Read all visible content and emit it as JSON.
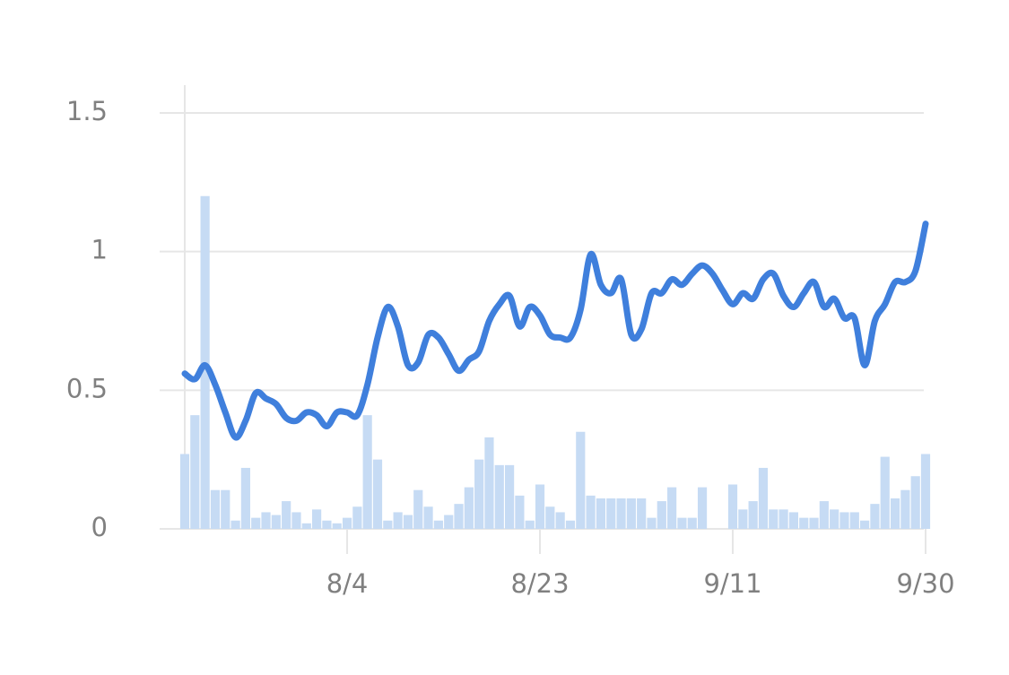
{
  "chart_data": {
    "type": "combo",
    "categories": [
      null,
      null,
      null,
      null,
      null,
      null,
      null,
      null,
      null,
      null,
      null,
      null,
      null,
      null,
      null,
      null,
      "8/4",
      null,
      null,
      null,
      null,
      null,
      null,
      null,
      null,
      null,
      null,
      null,
      null,
      null,
      null,
      null,
      null,
      null,
      null,
      "8/23",
      null,
      null,
      null,
      null,
      null,
      null,
      null,
      null,
      null,
      null,
      null,
      null,
      null,
      null,
      null,
      null,
      null,
      null,
      "9/11",
      null,
      null,
      null,
      null,
      null,
      null,
      null,
      null,
      null,
      null,
      null,
      null,
      null,
      null,
      null,
      null,
      null,
      null,
      "9/30"
    ],
    "series": [
      {
        "type": "bar",
        "color": "#c6dbf4",
        "values": [
          0.27,
          0.41,
          1.2,
          0.14,
          0.14,
          0.03,
          0.22,
          0.04,
          0.06,
          0.05,
          0.1,
          0.06,
          0.02,
          0.07,
          0.03,
          0.02,
          0.04,
          0.08,
          0.41,
          0.25,
          0.03,
          0.06,
          0.05,
          0.14,
          0.08,
          0.03,
          0.05,
          0.09,
          0.15,
          0.25,
          0.33,
          0.23,
          0.23,
          0.12,
          0.03,
          0.16,
          0.08,
          0.06,
          0.03,
          0.35,
          0.12,
          0.11,
          0.11,
          0.11,
          0.11,
          0.11,
          0.04,
          0.1,
          0.15,
          0.04,
          0.04,
          0.15,
          0,
          0,
          0.16,
          0.07,
          0.1,
          0.22,
          0.07,
          0.07,
          0.06,
          0.04,
          0.04,
          0.1,
          0.07,
          0.06,
          0.06,
          0.03,
          0.09,
          0.26,
          0.11,
          0.14,
          0.19,
          0.27
        ]
      },
      {
        "type": "line",
        "color": "#3f7fdc",
        "values": [
          0.56,
          0.54,
          0.59,
          0.52,
          0.42,
          0.33,
          0.39,
          0.49,
          0.47,
          0.45,
          0.4,
          0.39,
          0.42,
          0.41,
          0.37,
          0.42,
          0.42,
          0.41,
          0.52,
          0.69,
          0.8,
          0.73,
          0.59,
          0.6,
          0.7,
          0.69,
          0.63,
          0.57,
          0.61,
          0.64,
          0.75,
          0.81,
          0.84,
          0.73,
          0.8,
          0.77,
          0.7,
          0.69,
          0.69,
          0.79,
          0.99,
          0.88,
          0.85,
          0.9,
          0.7,
          0.72,
          0.85,
          0.85,
          0.9,
          0.88,
          0.92,
          0.95,
          0.92,
          0.86,
          0.81,
          0.85,
          0.83,
          0.9,
          0.92,
          0.84,
          0.8,
          0.85,
          0.89,
          0.8,
          0.83,
          0.76,
          0.76,
          0.59,
          0.75,
          0.81,
          0.89,
          0.89,
          0.93,
          1.1
        ]
      }
    ],
    "ylim": [
      0,
      1.6
    ],
    "yticks": [
      0,
      0.5,
      1,
      1.5
    ],
    "grid": true
  }
}
